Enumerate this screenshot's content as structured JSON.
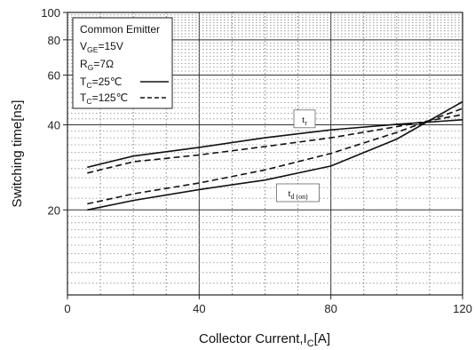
{
  "chart_data": {
    "type": "line",
    "xlabel": "Collector Current,I",
    "xlabel_sub": "C",
    "xlabel_suffix": "[A]",
    "ylabel": "Switching time[ns]",
    "xlim": [
      0,
      120
    ],
    "ylim": [
      10,
      100
    ],
    "yscale": "log",
    "grid": true,
    "legend_position": "top-left",
    "x_ticks": [
      {
        "value": 0,
        "label": "0"
      },
      {
        "value": 40,
        "label": "40"
      },
      {
        "value": 80,
        "label": "80"
      },
      {
        "value": 120,
        "label": "120"
      }
    ],
    "y_ticks": [
      {
        "value": 20,
        "label": "20"
      },
      {
        "value": 40,
        "label": "40"
      },
      {
        "value": 60,
        "label": "60"
      },
      {
        "value": 80,
        "label": "80"
      },
      {
        "value": 100,
        "label": "100"
      }
    ],
    "legend": {
      "title": "Common Emitter",
      "vge": {
        "main": "V",
        "sub": "GE",
        "rest": "=15V"
      },
      "rg": {
        "main": "R",
        "sub": "G",
        "rest": "=7Ω"
      },
      "tc25": {
        "main": "T",
        "sub": "C",
        "rest": "=25℃"
      },
      "tc125": {
        "main": "T",
        "sub": "C",
        "rest": "=125℃"
      }
    },
    "curve_labels": {
      "tr": {
        "main": "t",
        "sub": "r",
        "x": 72,
        "y": 42
      },
      "tdon": {
        "main": "t",
        "sub": "d (on)",
        "x": 70,
        "y": 23
      }
    },
    "series": [
      {
        "label": "t_r (T_C=25℃)",
        "style": "solid",
        "x": [
          6,
          20,
          40,
          60,
          80,
          100,
          120
        ],
        "y": [
          28.3,
          31,
          33.3,
          36,
          38.4,
          40.2,
          41.7
        ]
      },
      {
        "label": "t_r (T_C=125℃)",
        "style": "dashed",
        "x": [
          6,
          20,
          40,
          60,
          80,
          100,
          120
        ],
        "y": [
          27,
          29.6,
          31.3,
          33.5,
          36,
          39.4,
          43.5
        ]
      },
      {
        "label": "t_d(on) (T_C=25℃)",
        "style": "solid",
        "x": [
          6,
          20,
          40,
          60,
          80,
          100,
          120
        ],
        "y": [
          20,
          21.6,
          23.6,
          25.5,
          28.6,
          35.6,
          48.3
        ]
      },
      {
        "label": "t_d(on) (T_C=125℃)",
        "style": "dashed",
        "x": [
          6,
          20,
          40,
          60,
          80,
          100,
          120
        ],
        "y": [
          21,
          22.8,
          24.9,
          27.7,
          31.7,
          37.6,
          45.7
        ]
      }
    ]
  }
}
